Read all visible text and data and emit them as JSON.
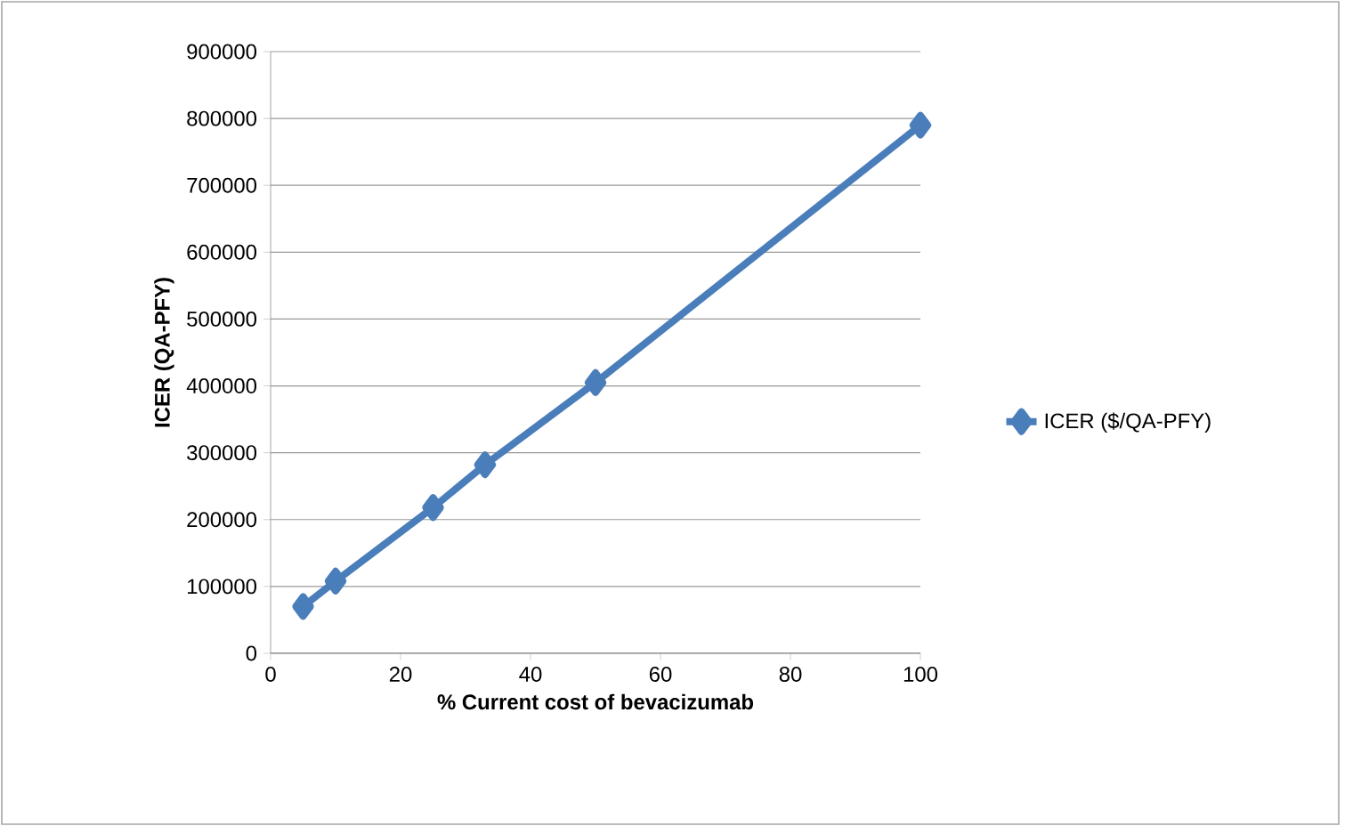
{
  "chart_data": {
    "type": "line",
    "xlabel": "% Current cost of bevacizumab",
    "ylabel": "ICER (QA-PFY)",
    "x": [
      5,
      10,
      25,
      33,
      50,
      100
    ],
    "series": [
      {
        "name": "ICER ($/QA-PFY)",
        "color": "#4a7ebb",
        "values": [
          70000,
          108000,
          218000,
          282000,
          405000,
          790000
        ]
      }
    ],
    "xlim": [
      0,
      100
    ],
    "xticks": [
      0,
      20,
      40,
      60,
      80,
      100
    ],
    "ylim": [
      0,
      900000
    ],
    "yticks": [
      0,
      100000,
      200000,
      300000,
      400000,
      500000,
      600000,
      700000,
      800000,
      900000
    ],
    "grid": "y",
    "legend": "right",
    "marker": "diamond",
    "line_style": "solid"
  }
}
